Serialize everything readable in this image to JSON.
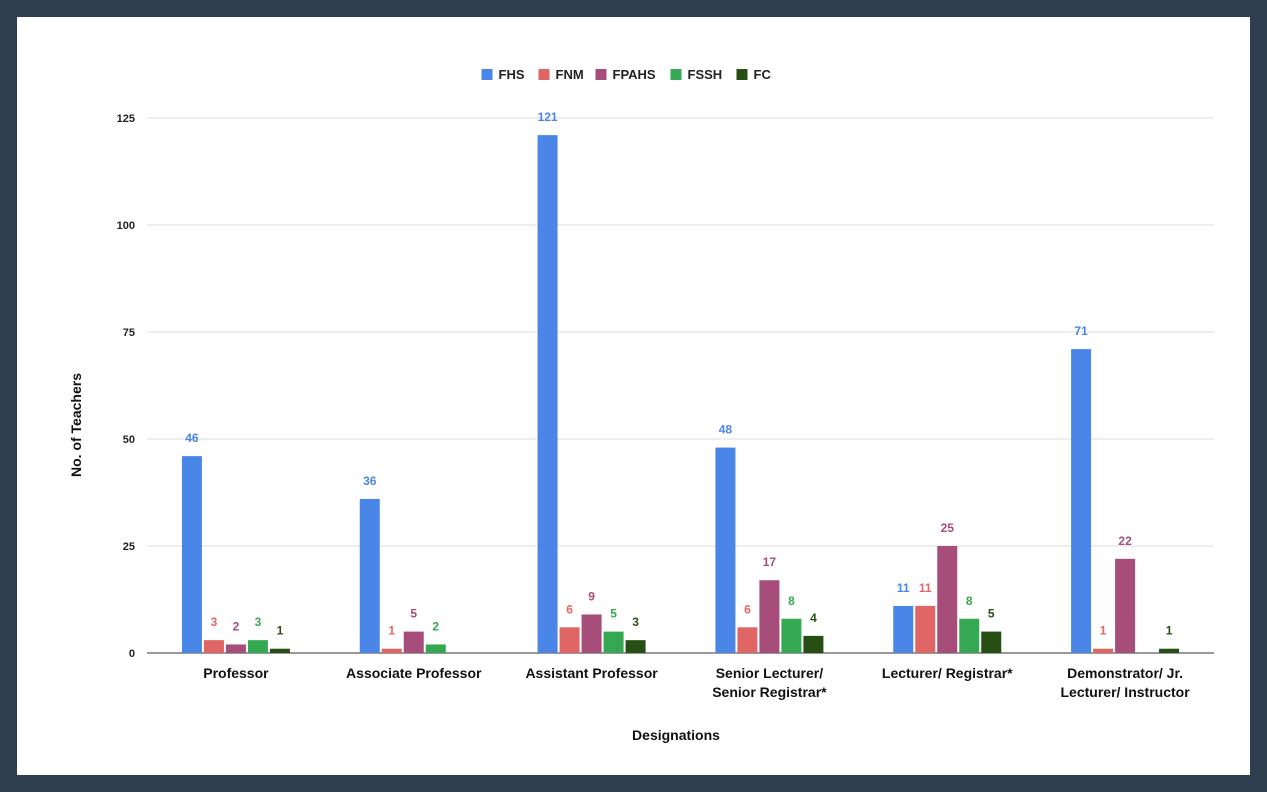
{
  "chart_data": {
    "type": "bar",
    "title": "",
    "xlabel": "Designations",
    "ylabel": "No. of Teachers",
    "ylim": [
      0,
      125
    ],
    "yticks": [
      0,
      25,
      50,
      75,
      100,
      125
    ],
    "grid": true,
    "legend_position": "top-center",
    "categories": [
      [
        "Professor"
      ],
      [
        "Associate Professor"
      ],
      [
        "Assistant Professor"
      ],
      [
        "Senior Lecturer/",
        "Senior Registrar*"
      ],
      [
        "Lecturer/ Registrar*"
      ],
      [
        "Demonstrator/ Jr.",
        "Lecturer/ Instructor"
      ]
    ],
    "series": [
      {
        "name": "FHS",
        "color": "#4a86e8",
        "label_color": "#4a86e8",
        "values": [
          46,
          36,
          121,
          48,
          11,
          71
        ]
      },
      {
        "name": "FNM",
        "color": "#e06666",
        "label_color": "#e06666",
        "values": [
          3,
          1,
          6,
          6,
          11,
          1
        ]
      },
      {
        "name": "FPAHS",
        "color": "#a64d79",
        "label_color": "#a64d79",
        "values": [
          2,
          5,
          9,
          17,
          25,
          22
        ]
      },
      {
        "name": "FSSH",
        "color": "#34a853",
        "label_color": "#34a853",
        "values": [
          3,
          2,
          5,
          8,
          8,
          null
        ]
      },
      {
        "name": "FC",
        "color": "#274e13",
        "label_color": "#274e13",
        "values": [
          1,
          null,
          3,
          4,
          5,
          1
        ]
      }
    ]
  }
}
